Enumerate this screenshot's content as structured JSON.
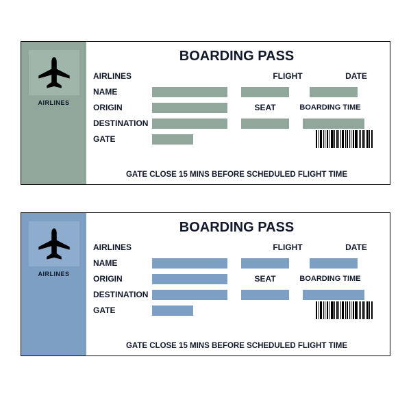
{
  "passes": [
    {
      "stub_bg": "#92a79b",
      "plane_bg": "#a0b6aa",
      "fill_color": "#92a79b",
      "stub_label": "AIRLINES",
      "title": "BOARDING PASS",
      "labels": {
        "airlines": "AIRLINES",
        "name": "NAME",
        "origin": "ORIGIN",
        "destination": "DESTINATION",
        "gate": "GATE",
        "flight": "FLIGHT",
        "date": "DATE",
        "seat": "SEAT",
        "boarding_time": "BOARDING TIME"
      },
      "footer": "GATE CLOSE 15 MINS BEFORE SCHEDULED FLIGHT TIME"
    },
    {
      "stub_bg": "#7d9fc4",
      "plane_bg": "#8eadce",
      "fill_color": "#7d9fc4",
      "stub_label": "AIRLINES",
      "title": "BOARDING PASS",
      "labels": {
        "airlines": "AIRLINES",
        "name": "NAME",
        "origin": "ORIGIN",
        "destination": "DESTINATION",
        "gate": "GATE",
        "flight": "FLIGHT",
        "date": "DATE",
        "seat": "SEAT",
        "boarding_time": "BOARDING TIME"
      },
      "footer": "GATE CLOSE 15 MINS BEFORE SCHEDULED FLIGHT TIME"
    }
  ],
  "barcode_widths": [
    2,
    1,
    3,
    1,
    1,
    2,
    1,
    4,
    1,
    2,
    1,
    1,
    3,
    1,
    2,
    1,
    1,
    2,
    4,
    1,
    1,
    2,
    1,
    3,
    1,
    2
  ]
}
